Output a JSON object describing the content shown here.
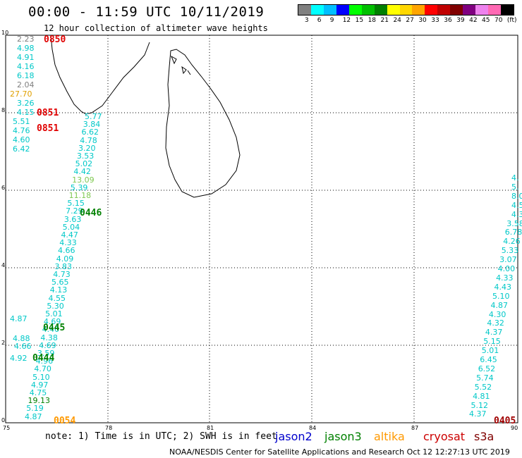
{
  "header": {
    "title": "00:00 - 11:59 UTC 10/11/2019",
    "subtitle": "12 hour collection of altimeter wave heights"
  },
  "colorbar": {
    "colors": [
      "#808080",
      "#00ffff",
      "#00bfff",
      "#0000ff",
      "#00ff00",
      "#00c000",
      "#008000",
      "#ffff00",
      "#ffd700",
      "#ffa500",
      "#ff0000",
      "#c00000",
      "#800000",
      "#800080",
      "#ee82ee",
      "#ff69b4",
      "#000000"
    ],
    "labels": [
      "3",
      "6",
      "9",
      "12",
      "15",
      "18",
      "21",
      "24",
      "27",
      "30",
      "33",
      "36",
      "39",
      "42",
      "45",
      "70",
      "(ft)"
    ]
  },
  "axes": {
    "x_ticks": [
      "75",
      "78",
      "81",
      "84",
      "87",
      "90"
    ],
    "y_ticks": [
      "0",
      "2",
      "4",
      "6",
      "8",
      "10"
    ]
  },
  "track_left_top": [
    {
      "v": "2.23",
      "c": "#808080"
    },
    {
      "v": "4.98",
      "c": "#00c8c8"
    },
    {
      "v": "4.91",
      "c": "#00c8c8"
    },
    {
      "v": "4.16",
      "c": "#00c8c8"
    },
    {
      "v": "6.18",
      "c": "#00c8c8"
    },
    {
      "v": "2.04",
      "c": "#808080"
    },
    {
      "v": "27.70",
      "c": "#e0a000"
    },
    {
      "v": "3.26",
      "c": "#00c8c8"
    },
    {
      "v": "4.15",
      "c": "#00c8c8"
    },
    {
      "v": "5.51",
      "c": "#00c8c8"
    },
    {
      "v": "4.76",
      "c": "#00c8c8"
    },
    {
      "v": "4.60",
      "c": "#00c8c8"
    },
    {
      "v": "6.42",
      "c": "#00c8c8"
    }
  ],
  "track_left_diag": [
    {
      "v": "5.77",
      "c": "#00c8c8"
    },
    {
      "v": "3.84",
      "c": "#00c8c8"
    },
    {
      "v": "6.62",
      "c": "#00c8c8"
    },
    {
      "v": "4.78",
      "c": "#00c8c8"
    },
    {
      "v": "3.20",
      "c": "#00c8c8"
    },
    {
      "v": "3.53",
      "c": "#00c8c8"
    },
    {
      "v": "5.02",
      "c": "#00c8c8"
    },
    {
      "v": "4.42",
      "c": "#00c8c8"
    },
    {
      "v": "13.09",
      "c": "#7ec850"
    },
    {
      "v": "5.39",
      "c": "#00c8c8"
    },
    {
      "v": "11.18",
      "c": "#7ec850"
    },
    {
      "v": "5.15",
      "c": "#00c8c8"
    },
    {
      "v": "7.29",
      "c": "#00c8c8"
    },
    {
      "v": "3.63",
      "c": "#00c8c8"
    },
    {
      "v": "5.04",
      "c": "#00c8c8"
    },
    {
      "v": "4.47",
      "c": "#00c8c8"
    },
    {
      "v": "4.33",
      "c": "#00c8c8"
    },
    {
      "v": "4.66",
      "c": "#00c8c8"
    },
    {
      "v": "4.09",
      "c": "#00c8c8"
    },
    {
      "v": "3.83",
      "c": "#00c8c8"
    },
    {
      "v": "4.73",
      "c": "#00c8c8"
    },
    {
      "v": "5.65",
      "c": "#00c8c8"
    },
    {
      "v": "4.13",
      "c": "#00c8c8"
    },
    {
      "v": "4.55",
      "c": "#00c8c8"
    },
    {
      "v": "5.30",
      "c": "#00c8c8"
    },
    {
      "v": "5.01",
      "c": "#00c8c8"
    },
    {
      "v": "4.69",
      "c": "#00c8c8"
    },
    {
      "v": "4.40",
      "c": "#00c8c8"
    },
    {
      "v": "4.38",
      "c": "#00c8c8"
    },
    {
      "v": "4.69",
      "c": "#00c8c8"
    },
    {
      "v": "3.59",
      "c": "#00c8c8"
    },
    {
      "v": "4.96",
      "c": "#00c8c8"
    },
    {
      "v": "4.70",
      "c": "#00c8c8"
    },
    {
      "v": "5.10",
      "c": "#00c8c8"
    },
    {
      "v": "4.97",
      "c": "#00c8c8"
    },
    {
      "v": "4.75",
      "c": "#00c8c8"
    },
    {
      "v": "19.13",
      "c": "#008000"
    },
    {
      "v": "5.19",
      "c": "#00c8c8"
    },
    {
      "v": "4.87",
      "c": "#00c8c8"
    }
  ],
  "track_left_extra": [
    {
      "v": "4.87",
      "c": "#00c8c8"
    },
    {
      "v": "4.88",
      "c": "#00c8c8"
    },
    {
      "v": "4.66",
      "c": "#00c8c8"
    },
    {
      "v": "4.92",
      "c": "#00c8c8"
    }
  ],
  "track_right": [
    {
      "v": "4.",
      "c": "#00c8c8"
    },
    {
      "v": "5.",
      "c": "#00c8c8"
    },
    {
      "v": "8.0",
      "c": "#00c8c8"
    },
    {
      "v": "4.5",
      "c": "#00c8c8"
    },
    {
      "v": "4.3",
      "c": "#00c8c8"
    },
    {
      "v": "3.58",
      "c": "#00c8c8"
    },
    {
      "v": "6.78",
      "c": "#00c8c8"
    },
    {
      "v": "4.26",
      "c": "#00c8c8"
    },
    {
      "v": "5.33",
      "c": "#00c8c8"
    },
    {
      "v": "3.07",
      "c": "#00c8c8"
    },
    {
      "v": "4.00",
      "c": "#00c8c8"
    },
    {
      "v": "4.33",
      "c": "#00c8c8"
    },
    {
      "v": "4.43",
      "c": "#00c8c8"
    },
    {
      "v": "5.10",
      "c": "#00c8c8"
    },
    {
      "v": "4.87",
      "c": "#00c8c8"
    },
    {
      "v": "4.30",
      "c": "#00c8c8"
    },
    {
      "v": "4.32",
      "c": "#00c8c8"
    },
    {
      "v": "4.37",
      "c": "#00c8c8"
    },
    {
      "v": "5.15",
      "c": "#00c8c8"
    },
    {
      "v": "5.01",
      "c": "#00c8c8"
    },
    {
      "v": "6.45",
      "c": "#00c8c8"
    },
    {
      "v": "6.52",
      "c": "#00c8c8"
    },
    {
      "v": "5.74",
      "c": "#00c8c8"
    },
    {
      "v": "5.52",
      "c": "#00c8c8"
    },
    {
      "v": "4.81",
      "c": "#00c8c8"
    },
    {
      "v": "5.12",
      "c": "#00c8c8"
    },
    {
      "v": "4.37",
      "c": "#00c8c8"
    }
  ],
  "pass_times": {
    "t0850": "0850",
    "t0851a": "0851",
    "t0851b": "0851",
    "t0446": "0446",
    "t0445": "0445",
    "t0444": "0444",
    "t0054": "0054",
    "t0405": "0405"
  },
  "pass_colors": {
    "red": "#e00000",
    "green": "#008000",
    "orange": "#ff9900",
    "maroon": "#a00000"
  },
  "footer": {
    "note": "note: 1) Time is in UTC; 2) SWH is in feet",
    "legend": [
      {
        "label": "jason2",
        "color": "#0000cc"
      },
      {
        "label": "jason3",
        "color": "#008000"
      },
      {
        "label": "altika",
        "color": "#ff9900"
      },
      {
        "label": "cryosat",
        "color": "#cc0000"
      },
      {
        "label": "s3a",
        "color": "#800000"
      }
    ],
    "credit": "NOAA/NESDIS Center for Satellite Applications and Research    Oct 12 12:27:13 UTC 2019"
  }
}
